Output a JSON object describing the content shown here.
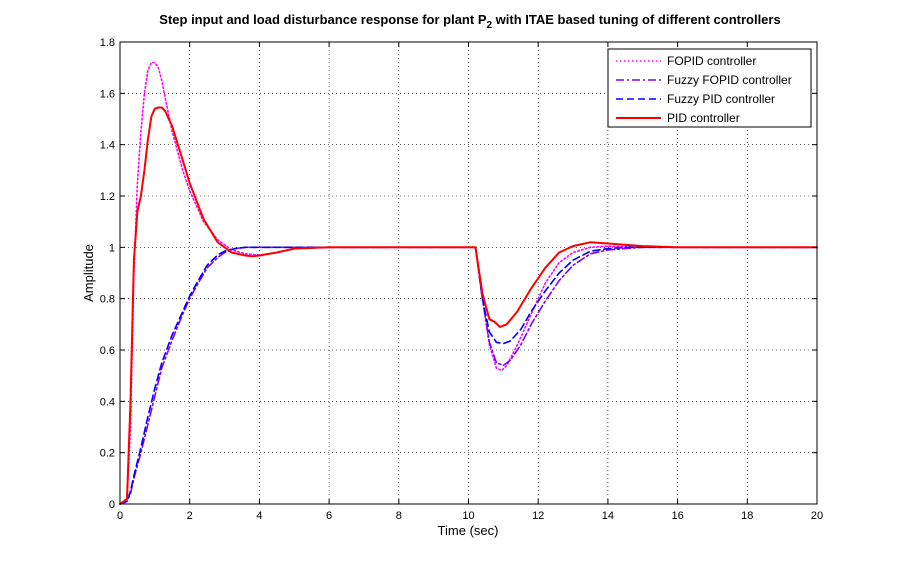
{
  "chart_data": {
    "type": "line",
    "title": "Step input and load disturbance response for plant P",
    "title_subscript": "2",
    "title_suffix": " with ITAE based tuning of different controllers",
    "xlabel": "Time (sec)",
    "ylabel": "Amplitude",
    "xlim": [
      0,
      20
    ],
    "ylim": [
      0,
      1.8
    ],
    "xticks": [
      "0",
      "2",
      "4",
      "6",
      "8",
      "10",
      "12",
      "14",
      "16",
      "18",
      "20"
    ],
    "yticks": [
      "0",
      "0.2",
      "0.4",
      "0.6",
      "0.8",
      "1",
      "1.2",
      "1.4",
      "1.6",
      "1.8"
    ],
    "grid": true,
    "legend_position": "top-right",
    "series": [
      {
        "name": "FOPID controller",
        "color": "#ff00ff",
        "style": "dotted",
        "x": [
          0,
          0.2,
          0.3,
          0.4,
          0.5,
          0.6,
          0.7,
          0.8,
          0.9,
          1.0,
          1.1,
          1.2,
          1.3,
          1.5,
          1.8,
          2.0,
          2.4,
          2.8,
          3.2,
          3.6,
          4.0,
          4.5,
          5.0,
          6.0,
          8.0,
          10.2,
          10.4,
          10.6,
          10.8,
          10.95,
          11.1,
          11.4,
          11.8,
          12.2,
          12.6,
          13.0,
          13.5,
          14.0,
          15.0,
          16.0,
          18.0,
          20.0
        ],
        "y": [
          0,
          0.02,
          0.3,
          0.9,
          1.25,
          1.45,
          1.6,
          1.69,
          1.72,
          1.72,
          1.7,
          1.65,
          1.58,
          1.45,
          1.3,
          1.22,
          1.1,
          1.03,
          0.99,
          0.975,
          0.97,
          0.98,
          0.995,
          1.0,
          1.0,
          1.0,
          0.8,
          0.62,
          0.53,
          0.52,
          0.54,
          0.62,
          0.74,
          0.86,
          0.94,
          0.98,
          1.0,
          1.005,
          1.0,
          1.0,
          1.0,
          1.0
        ]
      },
      {
        "name": "Fuzzy FOPID controller",
        "color": "#8000ff",
        "style": "dashdot",
        "x": [
          0,
          0.2,
          0.3,
          0.4,
          0.6,
          0.8,
          1.0,
          1.2,
          1.5,
          1.8,
          2.0,
          2.2,
          2.5,
          2.8,
          3.0,
          3.3,
          3.6,
          4.0,
          4.5,
          5.0,
          6.0,
          8.0,
          10.2,
          10.4,
          10.6,
          10.8,
          11.0,
          11.2,
          11.5,
          11.8,
          12.2,
          12.6,
          13.0,
          13.5,
          14.0,
          14.5,
          15.0,
          16.0,
          18.0,
          20.0
        ],
        "y": [
          0,
          0.01,
          0.04,
          0.1,
          0.2,
          0.31,
          0.42,
          0.53,
          0.64,
          0.74,
          0.8,
          0.85,
          0.92,
          0.96,
          0.98,
          0.995,
          1.0,
          1.0,
          1.0,
          1.0,
          1.0,
          1.0,
          1.0,
          0.8,
          0.63,
          0.55,
          0.54,
          0.56,
          0.62,
          0.7,
          0.79,
          0.87,
          0.93,
          0.975,
          0.99,
          0.995,
          1.0,
          1.0,
          1.0,
          1.0
        ]
      },
      {
        "name": "Fuzzy PID controller",
        "color": "#0000ff",
        "style": "dashed",
        "x": [
          0,
          0.2,
          0.3,
          0.4,
          0.6,
          0.8,
          1.0,
          1.2,
          1.5,
          1.8,
          2.0,
          2.2,
          2.5,
          2.8,
          3.0,
          3.3,
          3.6,
          4.0,
          4.5,
          5.0,
          6.0,
          8.0,
          10.2,
          10.4,
          10.6,
          10.8,
          11.0,
          11.2,
          11.5,
          11.8,
          12.2,
          12.6,
          13.0,
          13.5,
          14.0,
          14.5,
          15.0,
          16.0,
          18.0,
          20.0
        ],
        "y": [
          0,
          0.01,
          0.05,
          0.11,
          0.22,
          0.34,
          0.45,
          0.55,
          0.66,
          0.75,
          0.81,
          0.86,
          0.93,
          0.97,
          0.985,
          0.995,
          1.0,
          1.0,
          1.0,
          1.0,
          1.0,
          1.0,
          1.0,
          0.8,
          0.67,
          0.63,
          0.625,
          0.635,
          0.68,
          0.75,
          0.83,
          0.9,
          0.95,
          0.985,
          0.995,
          1.0,
          1.0,
          1.0,
          1.0,
          1.0
        ]
      },
      {
        "name": "PID controller",
        "color": "#ff0000",
        "style": "solid",
        "x": [
          0,
          0.2,
          0.3,
          0.4,
          0.5,
          0.6,
          0.7,
          0.8,
          0.9,
          1.0,
          1.1,
          1.2,
          1.3,
          1.5,
          1.8,
          2.0,
          2.4,
          2.8,
          3.2,
          3.6,
          3.8,
          4.0,
          4.5,
          5.0,
          6.0,
          8.0,
          10.2,
          10.4,
          10.6,
          10.75,
          10.9,
          11.1,
          11.4,
          11.8,
          12.2,
          12.6,
          13.0,
          13.5,
          14.0,
          15.0,
          16.0,
          18.0,
          20.0
        ],
        "y": [
          0,
          0.02,
          0.4,
          0.95,
          1.14,
          1.2,
          1.3,
          1.42,
          1.51,
          1.54,
          1.545,
          1.545,
          1.53,
          1.47,
          1.34,
          1.25,
          1.11,
          1.02,
          0.98,
          0.968,
          0.965,
          0.968,
          0.98,
          0.995,
          1.0,
          1.0,
          1.0,
          0.82,
          0.72,
          0.71,
          0.69,
          0.7,
          0.75,
          0.84,
          0.92,
          0.98,
          1.005,
          1.02,
          1.015,
          1.005,
          1.0,
          1.0,
          1.0
        ]
      }
    ]
  }
}
